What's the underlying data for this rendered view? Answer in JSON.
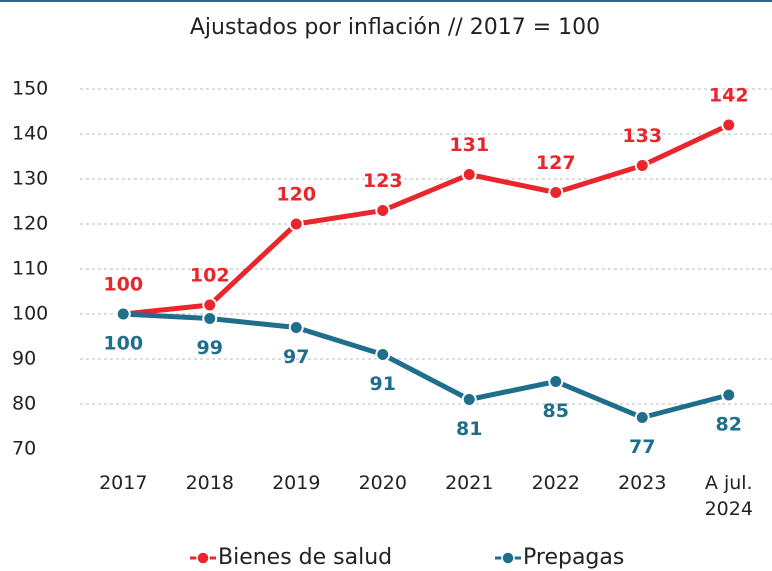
{
  "chart_data": {
    "type": "line",
    "title": "Ajustados por inflación // 2017 = 100",
    "categories": [
      "2017",
      "2018",
      "2019",
      "2020",
      "2021",
      "2022",
      "2023",
      "A jul. 2024"
    ],
    "series": [
      {
        "name": "Bienes de salud",
        "color": "#e8262b",
        "values": [
          100,
          102,
          120,
          123,
          131,
          127,
          133,
          142
        ]
      },
      {
        "name": "Prepagas",
        "color": "#1f6e8c",
        "values": [
          100,
          99,
          97,
          91,
          81,
          85,
          77,
          82
        ]
      }
    ],
    "ylim": [
      70,
      150
    ],
    "yticks": [
      70,
      80,
      90,
      100,
      110,
      120,
      130,
      140,
      150
    ],
    "grid": true
  }
}
